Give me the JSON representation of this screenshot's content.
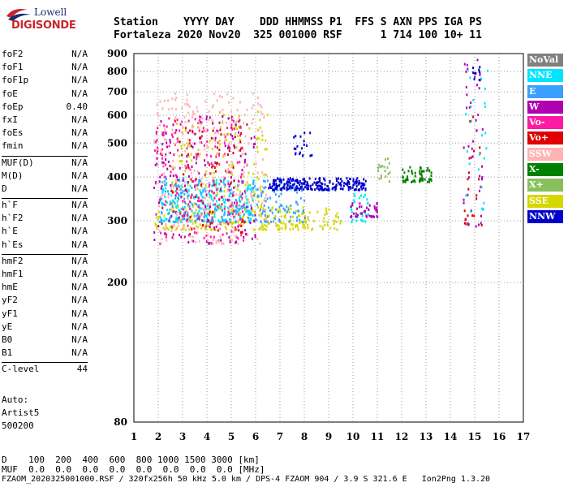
{
  "logo": {
    "line1": "Lowell",
    "line2": "DIGISONDE"
  },
  "header": {
    "line1": "Station    YYYY DAY    DDD HHMMSS P1  FFS S AXN PPS IGA PS",
    "line2": "Fortaleza 2020 Nov20  325 001000 RSF      1 714 100 10+ 11"
  },
  "params": [
    {
      "group": [
        {
          "name": "foF2",
          "value": "N/A"
        },
        {
          "name": "foF1",
          "value": "N/A"
        },
        {
          "name": "foF1p",
          "value": "N/A"
        },
        {
          "name": "foE",
          "value": "N/A"
        },
        {
          "name": "foEp",
          "value": "0.40"
        },
        {
          "name": "fxI",
          "value": "N/A"
        },
        {
          "name": "foEs",
          "value": "N/A"
        },
        {
          "name": "fmin",
          "value": "N/A"
        }
      ]
    },
    {
      "group": [
        {
          "name": "MUF(D)",
          "value": "N/A"
        },
        {
          "name": "M(D)",
          "value": "N/A"
        },
        {
          "name": "D",
          "value": "N/A"
        }
      ]
    },
    {
      "group": [
        {
          "name": "h`F",
          "value": "N/A"
        },
        {
          "name": "h`F2",
          "value": "N/A"
        },
        {
          "name": "h`E",
          "value": "N/A"
        },
        {
          "name": "h`Es",
          "value": "N/A"
        }
      ]
    },
    {
      "group": [
        {
          "name": "hmF2",
          "value": "N/A"
        },
        {
          "name": "hmF1",
          "value": "N/A"
        },
        {
          "name": "hmE",
          "value": "N/A"
        },
        {
          "name": "yF2",
          "value": "N/A"
        },
        {
          "name": "yF1",
          "value": "N/A"
        },
        {
          "name": "yE",
          "value": "N/A"
        },
        {
          "name": "B0",
          "value": "N/A"
        },
        {
          "name": "B1",
          "value": "N/A"
        }
      ]
    },
    {
      "group": [
        {
          "name": "C-level",
          "value": "44"
        }
      ]
    }
  ],
  "artist": {
    "line1": "Auto:",
    "line2": "Artist5",
    "line3": "500200"
  },
  "legend": [
    {
      "label": "NoVal",
      "color": "#808080"
    },
    {
      "label": "NNE",
      "color": "#00e5ff"
    },
    {
      "label": "E",
      "color": "#3aa0ff"
    },
    {
      "label": "W",
      "color": "#b000b0"
    },
    {
      "label": "Vo-",
      "color": "#ff1aa3"
    },
    {
      "label": "Vo+",
      "color": "#e00000"
    },
    {
      "label": "SSW",
      "color": "#ffb3b3"
    },
    {
      "label": "X-",
      "color": "#008000"
    },
    {
      "label": "X+",
      "color": "#88c060"
    },
    {
      "label": "SSE",
      "color": "#d6d600"
    },
    {
      "label": "NNW",
      "color": "#0000cc"
    }
  ],
  "footer": {
    "d_row": "D    100  200  400  600  800 1000 1500 3000 [km]",
    "muf_row": "MUF  0.0  0.0  0.0  0.0  0.0  0.0  0.0  0.0 [MHz]",
    "file_row": "FZAOM_2020325001000.RSF / 320fx256h 50 kHz 5.0 km / DPS-4 FZAOM 904 / 3.9 S 321.6 E   Ion2Png 1.3.20"
  },
  "chart_data": {
    "type": "scatter",
    "xlim": [
      1,
      17
    ],
    "ylim": [
      80,
      900
    ],
    "xticks": [
      1,
      2,
      3,
      4,
      5,
      6,
      7,
      8,
      9,
      10,
      11,
      12,
      13,
      14,
      15,
      16,
      17
    ],
    "yticks": [
      80,
      200,
      300,
      400,
      500,
      600,
      700,
      800,
      900
    ],
    "grid": true,
    "legend_placement": "right",
    "clusters": [
      {
        "series": "SSE",
        "x": [
          1.8,
          9.5
        ],
        "y": [
          285,
          330
        ],
        "n": 260
      },
      {
        "series": "SSE",
        "x": [
          2.5,
          6.5
        ],
        "y": [
          330,
          620
        ],
        "n": 160
      },
      {
        "series": "NNE",
        "x": [
          2.0,
          6.0
        ],
        "y": [
          300,
          400
        ],
        "n": 220
      },
      {
        "series": "NNE",
        "x": [
          9.8,
          10.6
        ],
        "y": [
          300,
          360
        ],
        "n": 30
      },
      {
        "series": "E",
        "x": [
          2.0,
          8.0
        ],
        "y": [
          300,
          400
        ],
        "n": 260
      },
      {
        "series": "W",
        "x": [
          1.8,
          6.0
        ],
        "y": [
          260,
          600
        ],
        "n": 200
      },
      {
        "series": "W",
        "x": [
          9.8,
          11.0
        ],
        "y": [
          310,
          340
        ],
        "n": 40
      },
      {
        "series": "Vo-",
        "x": [
          1.8,
          5.5
        ],
        "y": [
          260,
          600
        ],
        "n": 180
      },
      {
        "series": "Vo+",
        "x": [
          2.5,
          5.5
        ],
        "y": [
          280,
          560
        ],
        "n": 70
      },
      {
        "series": "SSW",
        "x": [
          1.8,
          6.5
        ],
        "y": [
          260,
          700
        ],
        "n": 260
      },
      {
        "series": "NNW",
        "x": [
          6.5,
          10.5
        ],
        "y": [
          370,
          400
        ],
        "n": 230
      },
      {
        "series": "NNW",
        "x": [
          7.5,
          8.3
        ],
        "y": [
          460,
          550
        ],
        "n": 20
      },
      {
        "series": "X-",
        "x": [
          12.0,
          13.2
        ],
        "y": [
          390,
          430
        ],
        "n": 60
      },
      {
        "series": "X+",
        "x": [
          11.0,
          11.5
        ],
        "y": [
          390,
          460
        ],
        "n": 20
      },
      {
        "series": "W",
        "x": [
          14.5,
          15.3
        ],
        "y": [
          290,
          870
        ],
        "n": 45
      },
      {
        "series": "Vo+",
        "x": [
          14.5,
          15.3
        ],
        "y": [
          280,
          600
        ],
        "n": 20
      },
      {
        "series": "NNE",
        "x": [
          14.6,
          15.5
        ],
        "y": [
          290,
          860
        ],
        "n": 25
      },
      {
        "series": "NNW",
        "x": [
          14.9,
          15.2
        ],
        "y": [
          760,
          870
        ],
        "n": 10
      }
    ]
  }
}
